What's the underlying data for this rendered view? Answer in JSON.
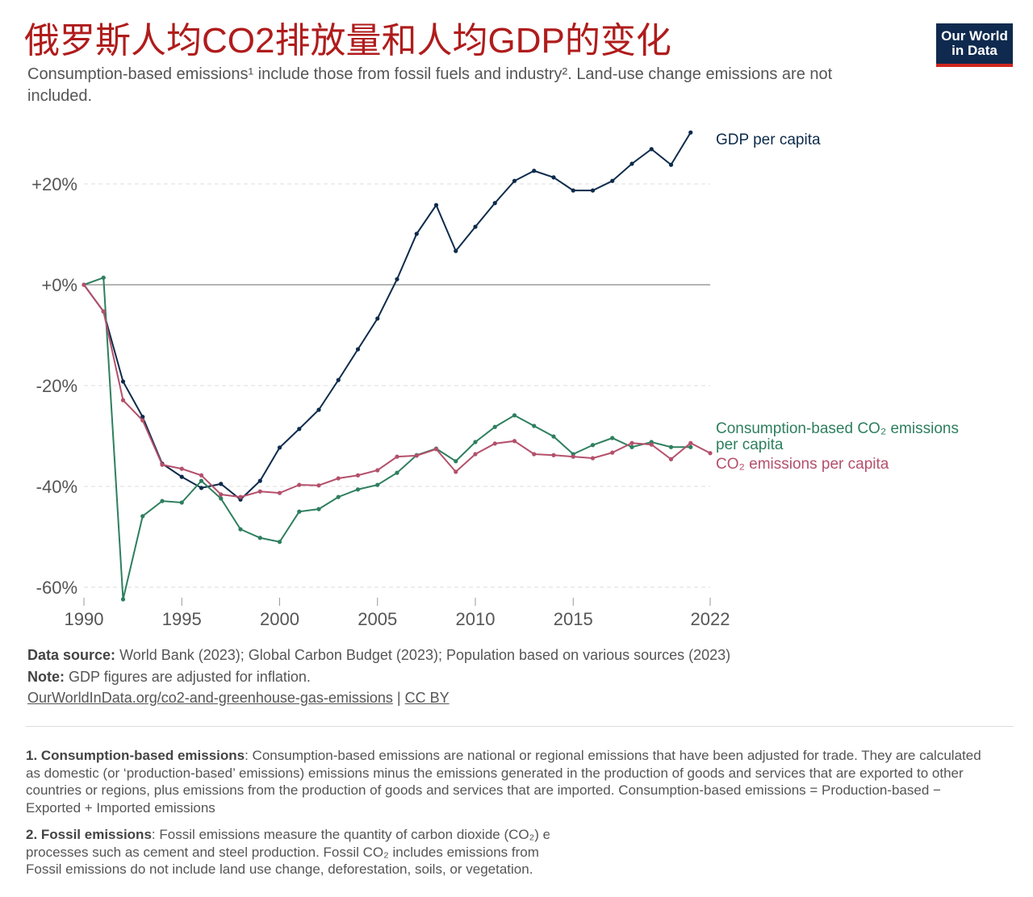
{
  "chart_data": {
    "type": "line",
    "title": "俄罗斯人均CO2排放量和人均GDP的变化",
    "subtitle": "Consumption-based emissions¹ include those from fossil fuels and industry². Land-use change emissions are not included.",
    "logo": [
      "Our World",
      "in Data"
    ],
    "x": [
      1990,
      1991,
      1992,
      1993,
      1994,
      1995,
      1996,
      1997,
      1998,
      1999,
      2000,
      2001,
      2002,
      2003,
      2004,
      2005,
      2006,
      2007,
      2008,
      2009,
      2010,
      2011,
      2012,
      2013,
      2014,
      2015,
      2016,
      2017,
      2018,
      2019,
      2020,
      2021,
      2022
    ],
    "series": [
      {
        "name": "GDP per capita",
        "color": "#0d2b4b",
        "values": [
          0,
          -5.3,
          -19.2,
          -26.2,
          -35.5,
          -38.1,
          -40.3,
          -39.5,
          -42.6,
          -38.9,
          -32.3,
          -28.6,
          -24.8,
          -18.9,
          -12.8,
          -6.7,
          1.1,
          10.1,
          15.8,
          6.7,
          11.5,
          16.2,
          20.6,
          22.6,
          21.3,
          18.7,
          18.7,
          20.6,
          24.0,
          26.9,
          23.8,
          30.2,
          null
        ]
      },
      {
        "name": "Consumption-based CO₂ emissions per capita",
        "color": "#2e7f5e",
        "values": [
          0,
          1.4,
          -62.4,
          -45.9,
          -42.9,
          -43.2,
          -38.9,
          -42.4,
          -48.5,
          -50.2,
          -51.0,
          -45.0,
          -44.5,
          -42.1,
          -40.6,
          -39.7,
          -37.3,
          -33.8,
          -32.5,
          -35.0,
          -31.2,
          -28.2,
          -25.9,
          -28.0,
          -30.1,
          -33.6,
          -31.8,
          -30.4,
          -32.2,
          -31.2,
          -32.2,
          -32.2,
          null
        ]
      },
      {
        "name": "CO₂ emissions per capita",
        "color": "#b4506b",
        "values": [
          0,
          -5.3,
          -22.9,
          -26.9,
          -35.7,
          -36.5,
          -37.8,
          -41.6,
          -42.1,
          -41.0,
          -41.3,
          -39.7,
          -39.8,
          -38.4,
          -37.8,
          -36.8,
          -34.1,
          -33.9,
          -32.6,
          -37.1,
          -33.6,
          -31.5,
          -31.0,
          -33.6,
          -33.8,
          -34.1,
          -34.4,
          -33.3,
          -31.4,
          -31.7,
          -34.6,
          -31.4,
          -33.4
        ]
      }
    ],
    "xlim": [
      1990,
      2022
    ],
    "xticks": [
      1990,
      1995,
      2000,
      2005,
      2010,
      2015,
      2022
    ],
    "ylim": [
      -63,
      31
    ],
    "yticks": [
      {
        "value": 20,
        "label": "+20%"
      },
      {
        "value": 0,
        "label": "+0%"
      },
      {
        "value": -20,
        "label": "-20%"
      },
      {
        "value": -40,
        "label": "-40%"
      },
      {
        "value": -60,
        "label": "-60%"
      }
    ],
    "grid": true
  },
  "footer": {
    "source_label": "Data source:",
    "source": "World Bank (2023); Global Carbon Budget (2023); Population based on various sources (2023)",
    "note_label": "Note:",
    "note": "GDP figures are adjusted for inflation.",
    "link": "OurWorldInData.org/co2-and-greenhouse-gas-emissions",
    "separator": "|",
    "license": "CC BY"
  },
  "footnotes": [
    {
      "label": "1. Consumption-based emissions",
      "text": ": Consumption-based emissions are national or regional emissions that have been adjusted for trade. They are calculated as domestic (or ‘production-based’ emissions) emissions minus the emissions generated in the production of goods and services that are exported to other countries or regions, plus emissions from the production of goods and services that are imported. Consumption-based emissions = Production-based − Exported + Imported emissions"
    },
    {
      "label": "2. Fossil emissions",
      "lines": [
        ": Fossil emissions measure the quantity of carbon dioxide (CO₂) e",
        "processes such as cement and steel production. Fossil CO₂ includes emissions from",
        "Fossil emissions do not include land use change, deforestation, soils, or vegetation."
      ]
    }
  ]
}
